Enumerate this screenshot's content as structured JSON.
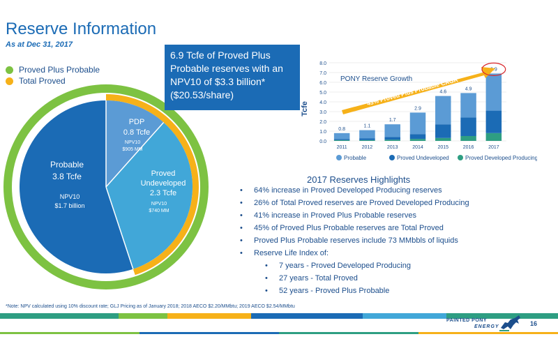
{
  "header": {
    "title": "Reserve Information",
    "subtitle": "As at Dec 31, 2017"
  },
  "legend": {
    "items": [
      {
        "label": "Proved Plus Probable",
        "color": "#7dc242"
      },
      {
        "label": "Total Proved",
        "color": "#f6b119"
      }
    ]
  },
  "callout": {
    "text": "6.9 Tcfe of Proved Plus Probable reserves with an NPV10 of $3.3 billion* ($20.53/share)"
  },
  "donut": {
    "probable": {
      "title": "Probable",
      "value": "3.8 Tcfe",
      "npv_label": "NPV10",
      "npv": "$1.7 billion"
    },
    "pdp": {
      "title": "PDP",
      "value": "0.8 Tcfe",
      "npv_label": "NPV10",
      "npv": "$905 MM"
    },
    "pud": {
      "title": "Proved",
      "title2": "Undeveloped",
      "value": "2.3 Tcfe",
      "npv_label": "NPV10",
      "npv": "$740 MM"
    },
    "shares": {
      "pdp": 0.8,
      "pud": 2.3,
      "probable": 3.8
    },
    "colors": {
      "probable": "#1b6bb5",
      "pdp": "#5b9bd5",
      "pud": "#41a7d8",
      "total_proved": "#f6b119",
      "p2": "#7dc242"
    }
  },
  "chart_data": {
    "type": "bar",
    "title": "PONY Reserve Growth",
    "ylabel": "Tcfe",
    "ylim": [
      0,
      8
    ],
    "yticks": [
      "0.0",
      "1.0",
      "2.0",
      "3.0",
      "4.0",
      "5.0",
      "6.0",
      "7.0",
      "8.0"
    ],
    "categories": [
      "2011",
      "2012",
      "2013",
      "2014",
      "2015",
      "2016",
      "2017"
    ],
    "totals": [
      0.8,
      1.1,
      1.7,
      2.9,
      4.6,
      4.9,
      6.9
    ],
    "total_labels": [
      "0.8",
      "1.1",
      "1.7",
      "2.9",
      "4.6",
      "4.9",
      "6.9"
    ],
    "series": [
      {
        "name": "Proved Developed Producing",
        "color": "#2e9e82",
        "values": [
          0.08,
          0.08,
          0.12,
          0.2,
          0.3,
          0.5,
          0.8
        ]
      },
      {
        "name": "Proved Undeveloped",
        "color": "#1b6bb5",
        "values": [
          0.12,
          0.17,
          0.28,
          0.5,
          1.4,
          1.9,
          2.3
        ]
      },
      {
        "name": "Probable",
        "color": "#5b9bd5",
        "values": [
          0.6,
          0.85,
          1.3,
          2.2,
          2.9,
          2.5,
          3.8
        ]
      }
    ],
    "legend_labels": [
      "Probable",
      "Proved Undeveloped",
      "Proved Developed Producing"
    ],
    "legend_colors": [
      "#5b9bd5",
      "#1b6bb5",
      "#2e9e82"
    ],
    "cagr_label": "43% Proved Plus Probable CAGR",
    "highlight_year": "2017"
  },
  "highlights": {
    "title": "2017 Reserves Highlights",
    "bullets": [
      {
        "text": "64% increase in Proved Developed Producing reserves",
        "sub": false
      },
      {
        "text": "26% of Total Proved reserves are Proved Developed Producing",
        "sub": false
      },
      {
        "text": "41% increase in Proved Plus Probable reserves",
        "sub": false
      },
      {
        "text": "45% of Proved Plus Probable reserves are Total Proved",
        "sub": false
      },
      {
        "text": "Proved Plus Probable reserves include 73 MMbbls of liquids",
        "sub": false
      },
      {
        "text": "Reserve Life Index of:",
        "sub": false
      },
      {
        "text": "7 years - Proved Developed Producing",
        "sub": true
      },
      {
        "text": "27 years - Total Proved",
        "sub": true
      },
      {
        "text": "52 years - Proved Plus Probable",
        "sub": true
      }
    ]
  },
  "footer": {
    "note": "*Note: NPV calculated using 10% discount rate; GLJ Pricing as of January 2018; 2018 AECO $2.20/MMbtu; 2019 AECO $2.54/MMbtu",
    "logo_line1": "PAINTED PONY",
    "logo_line2": "ENERGY",
    "page_number": "16"
  }
}
